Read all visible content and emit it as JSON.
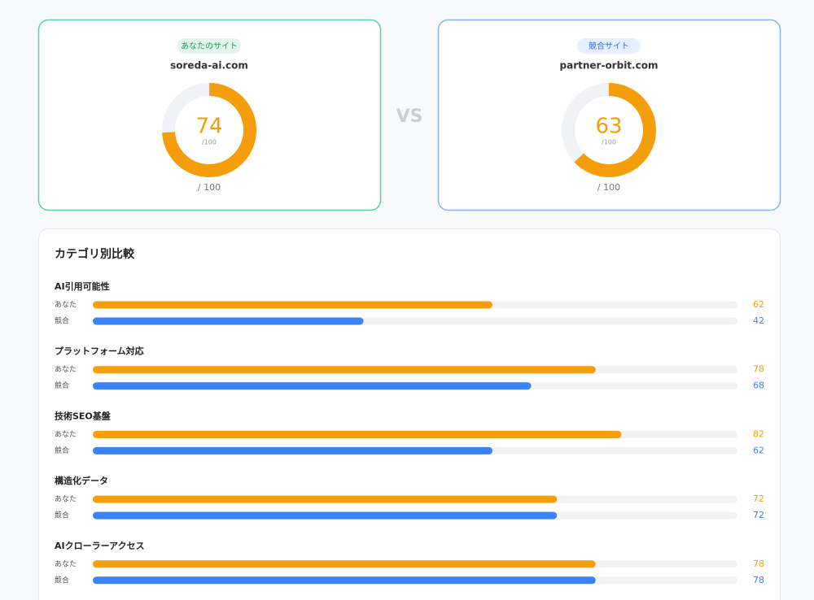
{
  "cards": [
    {
      "badge": "あなたのサイト",
      "domain": "soreda-ai.com",
      "score": 74,
      "ring_label": "/100",
      "max": {
        "value": 100,
        "label": "/ 100"
      }
    },
    {
      "badge": "競合サイト",
      "domain": "partner-orbit.com",
      "score": 63,
      "ring_label": "/100",
      "max": {
        "value": 100,
        "label": "/ 100"
      }
    }
  ],
  "vs": "VS",
  "comparison": {
    "title": "カテゴリ別比較",
    "categories": [
      {
        "name": "AI引用可能性",
        "rows": [
          {
            "label": "あなた",
            "value": 62
          },
          {
            "label": "競合",
            "value": 42
          }
        ]
      },
      {
        "name": "プラットフォーム対応",
        "rows": [
          {
            "label": "あなた",
            "value": 78
          },
          {
            "label": "競合",
            "value": 68
          }
        ]
      },
      {
        "name": "技術SEO基盤",
        "rows": [
          {
            "label": "あなた",
            "value": 82
          },
          {
            "label": "競合",
            "value": 62
          }
        ]
      },
      {
        "name": "構造化データ",
        "rows": [
          {
            "label": "あなた",
            "value": 72
          },
          {
            "label": "競合",
            "value": 72
          }
        ]
      },
      {
        "name": "AIクローラーアクセス",
        "rows": [
          {
            "label": "あなた",
            "value": 78
          },
          {
            "label": "競合",
            "value": 78
          }
        ]
      }
    ]
  }
}
